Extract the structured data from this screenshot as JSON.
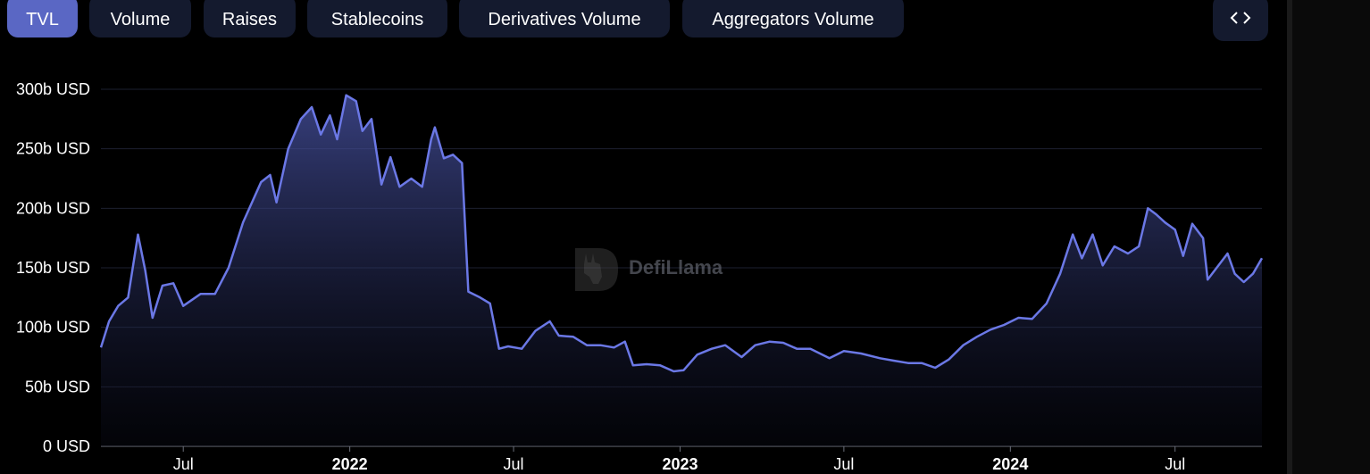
{
  "tabs": [
    {
      "label": "TVL",
      "active": true
    },
    {
      "label": "Volume",
      "active": false
    },
    {
      "label": "Raises",
      "active": false
    },
    {
      "label": "Stablecoins",
      "active": false
    },
    {
      "label": "Derivatives Volume",
      "active": false
    },
    {
      "label": "Aggregators Volume",
      "active": false
    }
  ],
  "embed_icon": "code-brackets-icon",
  "watermark": {
    "text": "DefiLlama",
    "icon": "llama-logo-icon"
  },
  "colors": {
    "line": "#6b78e6",
    "active_tab": "#5a67c4",
    "tab_bg": "#141a2e"
  },
  "chart_data": {
    "type": "area",
    "title": "",
    "xlabel": "",
    "ylabel": "",
    "ylim": [
      0,
      300
    ],
    "yunit": "b USD",
    "y_ticks": [
      "0 USD",
      "50b USD",
      "100b USD",
      "150b USD",
      "200b USD",
      "250b USD",
      "300b USD"
    ],
    "x_ticks": [
      {
        "label": "Jul",
        "date": "2021-07-01",
        "bold": false
      },
      {
        "label": "2022",
        "date": "2022-01-01",
        "bold": true
      },
      {
        "label": "Jul",
        "date": "2022-07-01",
        "bold": false
      },
      {
        "label": "2023",
        "date": "2023-01-01",
        "bold": true
      },
      {
        "label": "Jul",
        "date": "2023-07-01",
        "bold": false
      },
      {
        "label": "2024",
        "date": "2024-01-01",
        "bold": true
      },
      {
        "label": "Jul",
        "date": "2024-07-01",
        "bold": false
      }
    ],
    "grid": true,
    "series": [
      {
        "points": [
          [
            "2021-04-01",
            83
          ],
          [
            "2021-04-10",
            105
          ],
          [
            "2021-04-20",
            118
          ],
          [
            "2021-05-01",
            125
          ],
          [
            "2021-05-12",
            178
          ],
          [
            "2021-05-20",
            148
          ],
          [
            "2021-05-28",
            108
          ],
          [
            "2021-06-08",
            135
          ],
          [
            "2021-06-20",
            137
          ],
          [
            "2021-07-01",
            118
          ],
          [
            "2021-07-20",
            128
          ],
          [
            "2021-08-05",
            128
          ],
          [
            "2021-08-20",
            150
          ],
          [
            "2021-09-05",
            188
          ],
          [
            "2021-09-25",
            222
          ],
          [
            "2021-10-05",
            228
          ],
          [
            "2021-10-12",
            205
          ],
          [
            "2021-10-25",
            250
          ],
          [
            "2021-11-08",
            275
          ],
          [
            "2021-11-20",
            285
          ],
          [
            "2021-11-30",
            262
          ],
          [
            "2021-12-10",
            278
          ],
          [
            "2021-12-18",
            258
          ],
          [
            "2021-12-28",
            295
          ],
          [
            "2022-01-08",
            290
          ],
          [
            "2022-01-15",
            265
          ],
          [
            "2022-01-25",
            275
          ],
          [
            "2022-02-05",
            220
          ],
          [
            "2022-02-15",
            243
          ],
          [
            "2022-02-25",
            218
          ],
          [
            "2022-03-10",
            225
          ],
          [
            "2022-03-22",
            218
          ],
          [
            "2022-04-01",
            258
          ],
          [
            "2022-04-05",
            268
          ],
          [
            "2022-04-15",
            242
          ],
          [
            "2022-04-25",
            245
          ],
          [
            "2022-05-05",
            238
          ],
          [
            "2022-05-12",
            130
          ],
          [
            "2022-05-25",
            125
          ],
          [
            "2022-06-05",
            120
          ],
          [
            "2022-06-15",
            82
          ],
          [
            "2022-06-25",
            84
          ],
          [
            "2022-07-10",
            82
          ],
          [
            "2022-07-25",
            97
          ],
          [
            "2022-08-10",
            105
          ],
          [
            "2022-08-20",
            93
          ],
          [
            "2022-09-05",
            92
          ],
          [
            "2022-09-20",
            85
          ],
          [
            "2022-10-05",
            85
          ],
          [
            "2022-10-20",
            83
          ],
          [
            "2022-11-01",
            88
          ],
          [
            "2022-11-10",
            68
          ],
          [
            "2022-11-25",
            69
          ],
          [
            "2022-12-10",
            68
          ],
          [
            "2022-12-25",
            63
          ],
          [
            "2023-01-05",
            64
          ],
          [
            "2023-01-20",
            77
          ],
          [
            "2023-02-05",
            82
          ],
          [
            "2023-02-20",
            85
          ],
          [
            "2023-03-10",
            75
          ],
          [
            "2023-03-25",
            85
          ],
          [
            "2023-04-10",
            88
          ],
          [
            "2023-04-25",
            87
          ],
          [
            "2023-05-10",
            82
          ],
          [
            "2023-05-25",
            82
          ],
          [
            "2023-06-15",
            74
          ],
          [
            "2023-07-01",
            80
          ],
          [
            "2023-07-20",
            78
          ],
          [
            "2023-08-10",
            74
          ],
          [
            "2023-08-25",
            72
          ],
          [
            "2023-09-10",
            70
          ],
          [
            "2023-09-25",
            70
          ],
          [
            "2023-10-10",
            66
          ],
          [
            "2023-10-25",
            73
          ],
          [
            "2023-11-10",
            85
          ],
          [
            "2023-11-25",
            92
          ],
          [
            "2023-12-10",
            98
          ],
          [
            "2023-12-25",
            102
          ],
          [
            "2024-01-10",
            108
          ],
          [
            "2024-01-25",
            107
          ],
          [
            "2024-02-10",
            120
          ],
          [
            "2024-02-25",
            145
          ],
          [
            "2024-03-10",
            178
          ],
          [
            "2024-03-20",
            158
          ],
          [
            "2024-04-01",
            178
          ],
          [
            "2024-04-12",
            152
          ],
          [
            "2024-04-25",
            168
          ],
          [
            "2024-05-10",
            162
          ],
          [
            "2024-05-22",
            168
          ],
          [
            "2024-06-01",
            200
          ],
          [
            "2024-06-10",
            195
          ],
          [
            "2024-06-20",
            188
          ],
          [
            "2024-07-01",
            182
          ],
          [
            "2024-07-10",
            160
          ],
          [
            "2024-07-20",
            187
          ],
          [
            "2024-08-01",
            175
          ],
          [
            "2024-08-06",
            140
          ],
          [
            "2024-08-18",
            152
          ],
          [
            "2024-08-28",
            162
          ],
          [
            "2024-09-05",
            145
          ],
          [
            "2024-09-15",
            138
          ],
          [
            "2024-09-25",
            145
          ],
          [
            "2024-10-05",
            158
          ]
        ]
      }
    ]
  }
}
